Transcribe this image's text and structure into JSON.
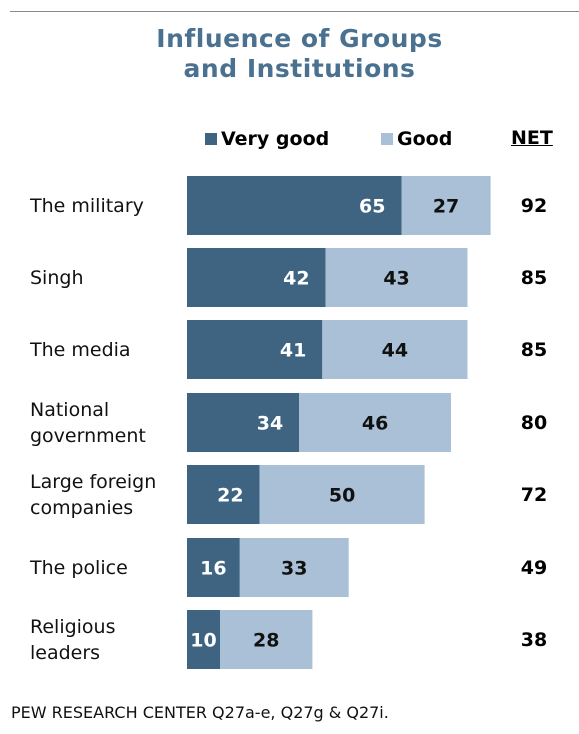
{
  "title_lines": [
    "Influence of Groups",
    "and Institutions"
  ],
  "legend": {
    "very_good": "Very good",
    "good": "Good",
    "net": "NET"
  },
  "colors": {
    "very_good": "#3e6482",
    "good": "#a9c0d6",
    "title": "#4a7190"
  },
  "chart_data": {
    "type": "bar",
    "orientation": "horizontal",
    "stacked": true,
    "categories": [
      "The military",
      "Singh",
      "The media",
      "National government",
      "Large foreign companies",
      "The police",
      "Religious leaders"
    ],
    "series": [
      {
        "name": "Very good",
        "values": [
          65,
          42,
          41,
          34,
          22,
          16,
          10
        ]
      },
      {
        "name": "Good",
        "values": [
          27,
          43,
          44,
          46,
          50,
          33,
          28
        ]
      }
    ],
    "net": [
      92,
      85,
      85,
      80,
      72,
      49,
      38
    ],
    "xlim": [
      0,
      100
    ]
  },
  "row_labels": [
    [
      "The military"
    ],
    [
      "Singh"
    ],
    [
      "The media"
    ],
    [
      "National",
      "government"
    ],
    [
      "Large foreign",
      "companies"
    ],
    [
      "The police"
    ],
    [
      "Religious",
      "leaders"
    ]
  ],
  "footer": "PEW RESEARCH CENTER Q27a-e, Q27g & Q27i."
}
